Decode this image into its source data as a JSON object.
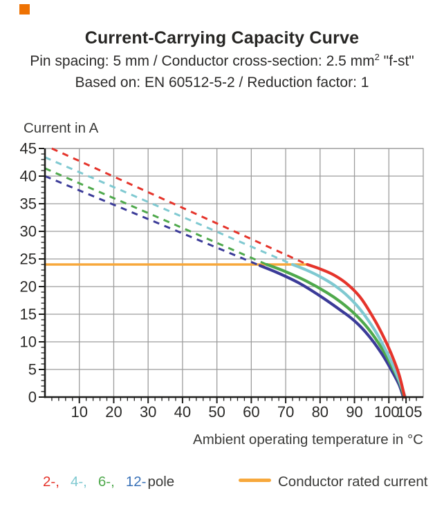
{
  "brand": {
    "square_color": "#ee7203"
  },
  "header": {
    "title": "Current-Carrying Capacity Curve",
    "subtitle1_prefix": "Pin spacing: 5 mm / Conductor cross-section: 2.5 mm",
    "subtitle1_sup": "2",
    "subtitle1_suffix": " \"f-st\"",
    "subtitle2": "Based on: EN 60512-5-2 / Reduction factor: 1"
  },
  "chart_data": {
    "type": "line",
    "title": "Current-Carrying Capacity Curve",
    "xlabel": "Ambient operating temperature in °C",
    "ylabel": "Current in A",
    "xlim": [
      0,
      110
    ],
    "ylim": [
      0,
      45
    ],
    "grid": {
      "color": "#9c9c9c",
      "x_lines": [
        10,
        20,
        30,
        40,
        50,
        60,
        70,
        80,
        90,
        100
      ],
      "y_lines": [
        5,
        10,
        15,
        20,
        25,
        30,
        35,
        40,
        45
      ]
    },
    "x_axis": {
      "major_ticks": [
        10,
        20,
        30,
        40,
        50,
        60,
        70,
        80,
        90,
        100,
        105
      ],
      "minor_step": 2
    },
    "y_axis": {
      "major_ticks": [
        0,
        5,
        10,
        15,
        20,
        25,
        30,
        35,
        40,
        45
      ],
      "minor_step": 1
    },
    "rated_current": {
      "label": "Conductor rated current",
      "value": 24,
      "x_start": 0,
      "x_end": 76.3,
      "color": "#f7a83c"
    },
    "series": [
      {
        "name": "12-pole",
        "color": "#3b3b98",
        "dashed": [
          [
            0,
            40
          ],
          [
            62.5,
            23.8
          ]
        ],
        "solid": [
          [
            62.5,
            23.8
          ],
          [
            68,
            22.4
          ],
          [
            74,
            20.6
          ],
          [
            80,
            18.3
          ],
          [
            86,
            15.7
          ],
          [
            90,
            13.8
          ],
          [
            94,
            11.2
          ],
          [
            98,
            7.8
          ],
          [
            101,
            4.6
          ],
          [
            103,
            2.2
          ],
          [
            104.2,
            0
          ]
        ]
      },
      {
        "name": "6-pole",
        "color": "#4fa94c",
        "dashed": [
          [
            0,
            41.4
          ],
          [
            64.5,
            24
          ]
        ],
        "solid": [
          [
            64.5,
            24
          ],
          [
            70,
            22.7
          ],
          [
            76,
            21.0
          ],
          [
            82,
            18.9
          ],
          [
            86,
            17.2
          ],
          [
            90,
            15.1
          ],
          [
            94,
            12.4
          ],
          [
            98,
            8.8
          ],
          [
            101,
            5.4
          ],
          [
            103,
            2.8
          ],
          [
            104.5,
            0
          ]
        ]
      },
      {
        "name": "4-pole",
        "color": "#7fc9d1",
        "dashed": [
          [
            0,
            43.4
          ],
          [
            72,
            24
          ]
        ],
        "solid": [
          [
            72,
            24
          ],
          [
            76,
            23.0
          ],
          [
            80,
            21.8
          ],
          [
            84,
            20.3
          ],
          [
            88,
            18.3
          ],
          [
            92,
            15.6
          ],
          [
            96,
            12.0
          ],
          [
            99,
            8.6
          ],
          [
            101,
            6.0
          ],
          [
            103,
            3.0
          ],
          [
            104.8,
            0
          ]
        ]
      },
      {
        "name": "2-pole",
        "color": "#e5342b",
        "dashed": [
          [
            2,
            45
          ],
          [
            76.3,
            24
          ]
        ],
        "solid": [
          [
            76.3,
            24
          ],
          [
            80,
            23.2
          ],
          [
            84,
            22.1
          ],
          [
            88,
            20.4
          ],
          [
            92,
            17.8
          ],
          [
            96,
            13.8
          ],
          [
            99,
            10.2
          ],
          [
            101,
            7.4
          ],
          [
            103,
            4.0
          ],
          [
            104.6,
            0
          ]
        ]
      }
    ]
  },
  "legend": {
    "poles": [
      {
        "label": "2-,",
        "color": "#e5342b"
      },
      {
        "label": "4-,",
        "color": "#7fc9d1"
      },
      {
        "label": "6-,",
        "color": "#4fa94c"
      },
      {
        "label": "12-",
        "color": "#3a72b8"
      }
    ],
    "poles_suffix": "pole",
    "rated_label": "Conductor rated current"
  }
}
